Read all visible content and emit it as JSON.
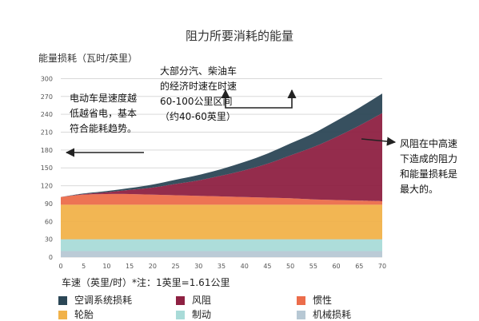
{
  "chart_data": {
    "type": "area",
    "stacked": true,
    "title": "阻力所要消耗的能量",
    "ylabel": "能量损耗（瓦时/英里）",
    "xlabel": "车速（英里/时）*注：1英里=1.61公里",
    "x": [
      0,
      5,
      10,
      15,
      20,
      25,
      30,
      35,
      40,
      45,
      50,
      55,
      60,
      65,
      70
    ],
    "xlim": [
      0,
      70
    ],
    "ylim": [
      0,
      310
    ],
    "yticks": [
      0,
      30,
      60,
      90,
      120,
      150,
      180,
      210,
      240,
      270,
      300
    ],
    "xticks": [
      0,
      5,
      10,
      15,
      20,
      25,
      30,
      35,
      40,
      45,
      50,
      55,
      60,
      65,
      70
    ],
    "series": [
      {
        "name": "机械损耗",
        "color": "#b7c8d4",
        "values": [
          10,
          10,
          10,
          10,
          10,
          10,
          10,
          10,
          10,
          10,
          10,
          10,
          10,
          10,
          10
        ]
      },
      {
        "name": "制动",
        "color": "#a9dbd8",
        "values": [
          20,
          20,
          20,
          20,
          20,
          20,
          20,
          20,
          20,
          20,
          20,
          20,
          20,
          20,
          20
        ]
      },
      {
        "name": "轮胎",
        "color": "#f1b24a",
        "values": [
          58,
          58,
          58,
          58,
          58,
          58,
          58,
          58,
          58,
          58,
          58,
          58,
          58,
          58,
          58
        ]
      },
      {
        "name": "惯性",
        "color": "#ec6d4b",
        "values": [
          13,
          17,
          18,
          18,
          17,
          16,
          15,
          14,
          13,
          12,
          11,
          9,
          8,
          7,
          6
        ]
      },
      {
        "name": "风阻",
        "color": "#8e2142",
        "values": [
          0,
          1,
          3,
          7,
          12,
          19,
          26,
          35,
          45,
          57,
          72,
          88,
          106,
          126,
          148
        ]
      },
      {
        "name": "空调系统损耗",
        "color": "#2c4756",
        "values": [
          0,
          1,
          2,
          3,
          5,
          7,
          9,
          11,
          14,
          17,
          20,
          23,
          27,
          30,
          33
        ]
      }
    ],
    "grid": true,
    "legend_position": "bottom"
  },
  "annotations": {
    "ev": "电动车是速度越\n低越省电，基本\n符合能耗趋势。",
    "diesel": "大部分汽、柴油车\n的经济时速在时速\n60-100公里区间\n（约40-60英里）",
    "wind": "风阻在中高速\n下造成的阻力\n和能量损耗是\n最大的。"
  },
  "legend": [
    {
      "label": "空调系统损耗",
      "color": "#2c4756"
    },
    {
      "label": "风阻",
      "color": "#8e2142"
    },
    {
      "label": "惯性",
      "color": "#ec6d4b"
    },
    {
      "label": "轮胎",
      "color": "#f1b24a"
    },
    {
      "label": "制动",
      "color": "#a9dbd8"
    },
    {
      "label": "机械损耗",
      "color": "#b7c8d4"
    }
  ]
}
